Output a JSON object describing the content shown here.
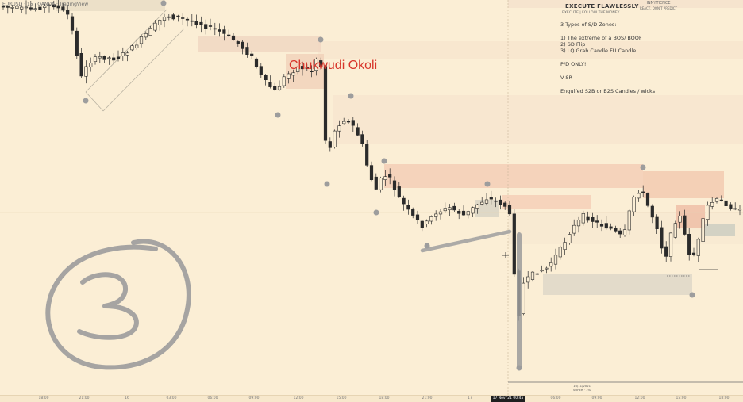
{
  "symbol": {
    "pair": "EURUSD",
    "timeframe": "15",
    "broker": "OANDA",
    "source": "TradingView"
  },
  "author_text": "Chukwudi Okoli",
  "brand": {
    "name": "INNYTIENCE",
    "slogan": "REACT, DON'T PREDICT"
  },
  "notes": {
    "heading": "EXECUTE FLAWLESSLY",
    "subheading": "EXECUTE | FOLLOW THE MONEY",
    "lines": [
      "3 Types of S/D Zones:",
      "",
      "1) The extreme of a BOS/ BOOF",
      "2) SD Flip",
      "3) LQ Grab Candle FU Candle",
      "",
      "P/D ONLY!",
      "",
      "V-SR",
      "",
      "Engulfed S2B or B2S Candles / wicks"
    ]
  },
  "time_axis": {
    "ticks": [
      "18:00",
      "21:00",
      "16",
      "03:00",
      "06:00",
      "09:00",
      "12:00",
      "15:00",
      "18:00",
      "21:00",
      "17",
      "03:00",
      "06:00",
      "09:00",
      "12:00",
      "15:00",
      "18:00"
    ],
    "cursor_label": "17 Nov '21  00:45"
  },
  "range_info": {
    "line1": "16/11/2021",
    "line2": "SUPER · 1%"
  },
  "colors": {
    "background": "#fbeed5",
    "candle": "#2b2b2b",
    "supply_zone": "#f3c9b1",
    "demand_zone": "#d9d3c4",
    "annotation_grey": "#9f9f9f",
    "author_red": "#d8362c"
  },
  "handwritten_number": "3",
  "chart_data": {
    "type": "candlestick",
    "instrument": "EURUSD",
    "interval": "15",
    "approx_candles": 160,
    "title": "",
    "xlabel": "",
    "ylabel": "",
    "grid": false
  }
}
